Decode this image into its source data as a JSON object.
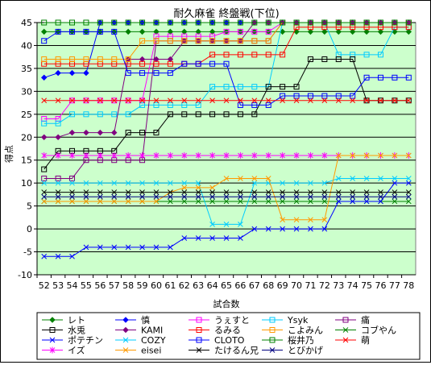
{
  "chart_data": {
    "type": "line",
    "title": "耐久麻雀 終盤戦(下位)",
    "xlabel": "試合数",
    "ylabel": "得点",
    "ylim": [
      -10,
      45
    ],
    "yticks": [
      -10,
      -5,
      0,
      5,
      10,
      15,
      20,
      25,
      30,
      35,
      40,
      45
    ],
    "x": [
      52,
      53,
      54,
      55,
      56,
      57,
      58,
      59,
      60,
      61,
      62,
      63,
      64,
      65,
      66,
      67,
      68,
      69,
      70,
      71,
      72,
      73,
      74,
      75,
      76,
      77,
      78
    ],
    "grid": true,
    "legend_position": "bottom",
    "series": [
      {
        "name": "レト",
        "color": "#008000",
        "marker": "diamond",
        "values": [
          43,
          43,
          43,
          43,
          43,
          43,
          43,
          43,
          43,
          43,
          43,
          43,
          43,
          43,
          43,
          43,
          43,
          43,
          43,
          43,
          43,
          43,
          43,
          43,
          43,
          43,
          43
        ]
      },
      {
        "name": "慎",
        "color": "#0000ff",
        "marker": "diamond",
        "values": [
          33,
          34,
          34,
          34,
          45,
          45,
          45,
          45,
          45,
          45,
          45,
          45,
          45,
          45,
          45,
          45,
          45,
          45,
          45,
          45,
          45,
          45,
          45,
          45,
          45,
          45,
          45
        ]
      },
      {
        "name": "うぇすと",
        "color": "#ff00ff",
        "marker": "square",
        "values": [
          24,
          24,
          28,
          28,
          28,
          28,
          28,
          28,
          42,
          42,
          42,
          42,
          42,
          43,
          43,
          43,
          43,
          45,
          45,
          45,
          45,
          45,
          45,
          45,
          45,
          45,
          45
        ]
      },
      {
        "name": "Ysyk",
        "color": "#00ccff",
        "marker": "square",
        "values": [
          23,
          23,
          25,
          25,
          25,
          25,
          25,
          27,
          27,
          27,
          27,
          27,
          31,
          31,
          31,
          31,
          31,
          45,
          45,
          45,
          45,
          38,
          38,
          38,
          38,
          44,
          44
        ]
      },
      {
        "name": "痛",
        "color": "#800080",
        "marker": "square",
        "values": [
          11,
          11,
          11,
          15,
          15,
          15,
          15,
          15,
          41,
          41,
          41,
          41,
          41,
          41,
          41,
          41,
          41,
          45,
          45,
          45,
          45,
          45,
          45,
          45,
          45,
          45,
          45
        ]
      },
      {
        "name": "水兎",
        "color": "#000000",
        "marker": "square",
        "values": [
          13,
          17,
          17,
          17,
          17,
          17,
          21,
          21,
          21,
          25,
          25,
          25,
          25,
          25,
          25,
          25,
          31,
          31,
          31,
          37,
          37,
          37,
          37,
          28,
          28,
          28,
          28
        ]
      },
      {
        "name": "KAMI",
        "color": "#800080",
        "marker": "diamond",
        "values": [
          20,
          20,
          21,
          21,
          21,
          21,
          37,
          37,
          37,
          37,
          41,
          41,
          41,
          41,
          41,
          45,
          45,
          45,
          45,
          45,
          45,
          45,
          45,
          45,
          45,
          45,
          45
        ]
      },
      {
        "name": "るみる",
        "color": "#ff0000",
        "marker": "square",
        "values": [
          36,
          36,
          36,
          36,
          36,
          36,
          36,
          36,
          36,
          36,
          36,
          36,
          38,
          38,
          38,
          38,
          38,
          38,
          44,
          44,
          44,
          44,
          44,
          44,
          44,
          44,
          44
        ]
      },
      {
        "name": "こよみん",
        "color": "#ff9900",
        "marker": "square",
        "values": [
          37,
          37,
          37,
          37,
          37,
          37,
          37,
          41,
          41,
          41,
          41,
          41,
          41,
          41,
          41,
          41,
          41,
          45,
          45,
          45,
          45,
          45,
          45,
          45,
          45,
          45,
          45
        ]
      },
      {
        "name": "コブやん",
        "color": "#008000",
        "marker": "x",
        "values": [
          6,
          6,
          6,
          6,
          6,
          6,
          6,
          6,
          6,
          6,
          6,
          6,
          6,
          6,
          6,
          6,
          6,
          6,
          6,
          6,
          6,
          6,
          6,
          6,
          6,
          6,
          6
        ]
      },
      {
        "name": "ポテチン",
        "color": "#0000ff",
        "marker": "x",
        "values": [
          -6,
          -6,
          -6,
          -4,
          -4,
          -4,
          -4,
          -4,
          -4,
          -4,
          -2,
          -2,
          -2,
          -2,
          -2,
          0,
          0,
          0,
          0,
          0,
          0,
          6,
          6,
          6,
          6,
          10,
          10
        ]
      },
      {
        "name": "COZY",
        "color": "#00ccff",
        "marker": "x",
        "values": [
          10,
          10,
          10,
          10,
          10,
          10,
          10,
          10,
          10,
          10,
          10,
          10,
          1,
          1,
          1,
          10,
          10,
          10,
          10,
          10,
          10,
          11,
          11,
          11,
          11,
          11,
          11
        ]
      },
      {
        "name": "CLOTO",
        "color": "#0000ff",
        "marker": "square",
        "values": [
          41,
          43,
          43,
          43,
          43,
          43,
          34,
          34,
          34,
          34,
          36,
          36,
          36,
          36,
          27,
          27,
          27,
          29,
          29,
          29,
          29,
          29,
          29,
          33,
          33,
          33,
          33
        ]
      },
      {
        "name": "桜井乃",
        "color": "#008000",
        "marker": "square",
        "values": [
          45,
          45,
          45,
          45,
          45,
          45,
          45,
          45,
          45,
          45,
          45,
          45,
          45,
          45,
          45,
          45,
          45,
          45,
          45,
          45,
          45,
          45,
          45,
          45,
          45,
          45,
          45
        ]
      },
      {
        "name": "萌",
        "color": "#ff0000",
        "marker": "x",
        "values": [
          28,
          28,
          28,
          28,
          28,
          28,
          28,
          28,
          28,
          28,
          28,
          28,
          28,
          28,
          28,
          28,
          28,
          28,
          28,
          28,
          28,
          28,
          28,
          28,
          28,
          28,
          28
        ]
      },
      {
        "name": "イズ",
        "color": "#ff00ff",
        "marker": "star",
        "values": [
          16,
          16,
          16,
          16,
          16,
          16,
          16,
          16,
          16,
          16,
          16,
          16,
          16,
          16,
          16,
          16,
          16,
          16,
          16,
          16,
          16,
          16,
          16,
          16,
          16,
          16,
          16
        ]
      },
      {
        "name": "eisei",
        "color": "#ff9900",
        "marker": "x",
        "values": [
          6,
          6,
          6,
          6,
          6,
          6,
          6,
          6,
          6,
          8,
          9,
          9,
          9,
          11,
          11,
          11,
          11,
          2,
          2,
          2,
          2,
          16,
          16,
          16,
          16,
          16,
          16
        ]
      },
      {
        "name": "たけるん兄",
        "color": "#000000",
        "marker": "x",
        "values": [
          8,
          8,
          8,
          8,
          8,
          8,
          8,
          8,
          8,
          8,
          8,
          8,
          8,
          8,
          8,
          8,
          8,
          8,
          8,
          8,
          8,
          8,
          8,
          8,
          8,
          8,
          8
        ]
      },
      {
        "name": "とびかげ",
        "color": "#000080",
        "marker": "x",
        "values": [
          7,
          7,
          7,
          7,
          7,
          7,
          7,
          7,
          7,
          7,
          7,
          7,
          7,
          7,
          7,
          7,
          7,
          7,
          7,
          7,
          7,
          7,
          7,
          7,
          7,
          7,
          7
        ]
      }
    ]
  }
}
